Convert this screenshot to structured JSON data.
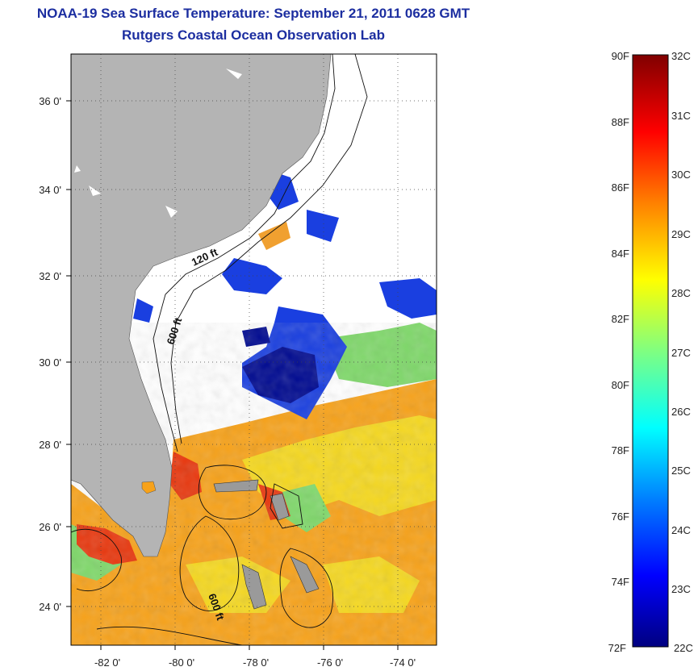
{
  "title": {
    "line1": "NOAA-19 Sea Surface Temperature:  September 21, 2011 0628 GMT",
    "line2": "Rutgers Coastal Ocean Observation Lab"
  },
  "map": {
    "lon_ticks": [
      "-82 0'",
      "-80 0'",
      "-78 0'",
      "-76 0'",
      "-74 0'"
    ],
    "lat_ticks": [
      "36 0'",
      "34 0'",
      "32 0'",
      "30 0'",
      "28 0'",
      "26 0'",
      "24 0'"
    ],
    "contour_labels": [
      "120 ft",
      "600 ft",
      "600 ft"
    ],
    "land_color": "#b4b4b4",
    "cloud_color": "#ffffff"
  },
  "colorbar": {
    "fahrenheit": [
      "90F",
      "88F",
      "86F",
      "84F",
      "82F",
      "80F",
      "78F",
      "76F",
      "74F",
      "72F"
    ],
    "celsius": [
      "32C",
      "31C",
      "30C",
      "29C",
      "28C",
      "27C",
      "26C",
      "25C",
      "24C",
      "23C",
      "22C"
    ],
    "colormap": [
      "#000080",
      "#0000ff",
      "#0080ff",
      "#00ffff",
      "#80ff80",
      "#ffff00",
      "#ff8000",
      "#ff0000",
      "#800000"
    ]
  }
}
